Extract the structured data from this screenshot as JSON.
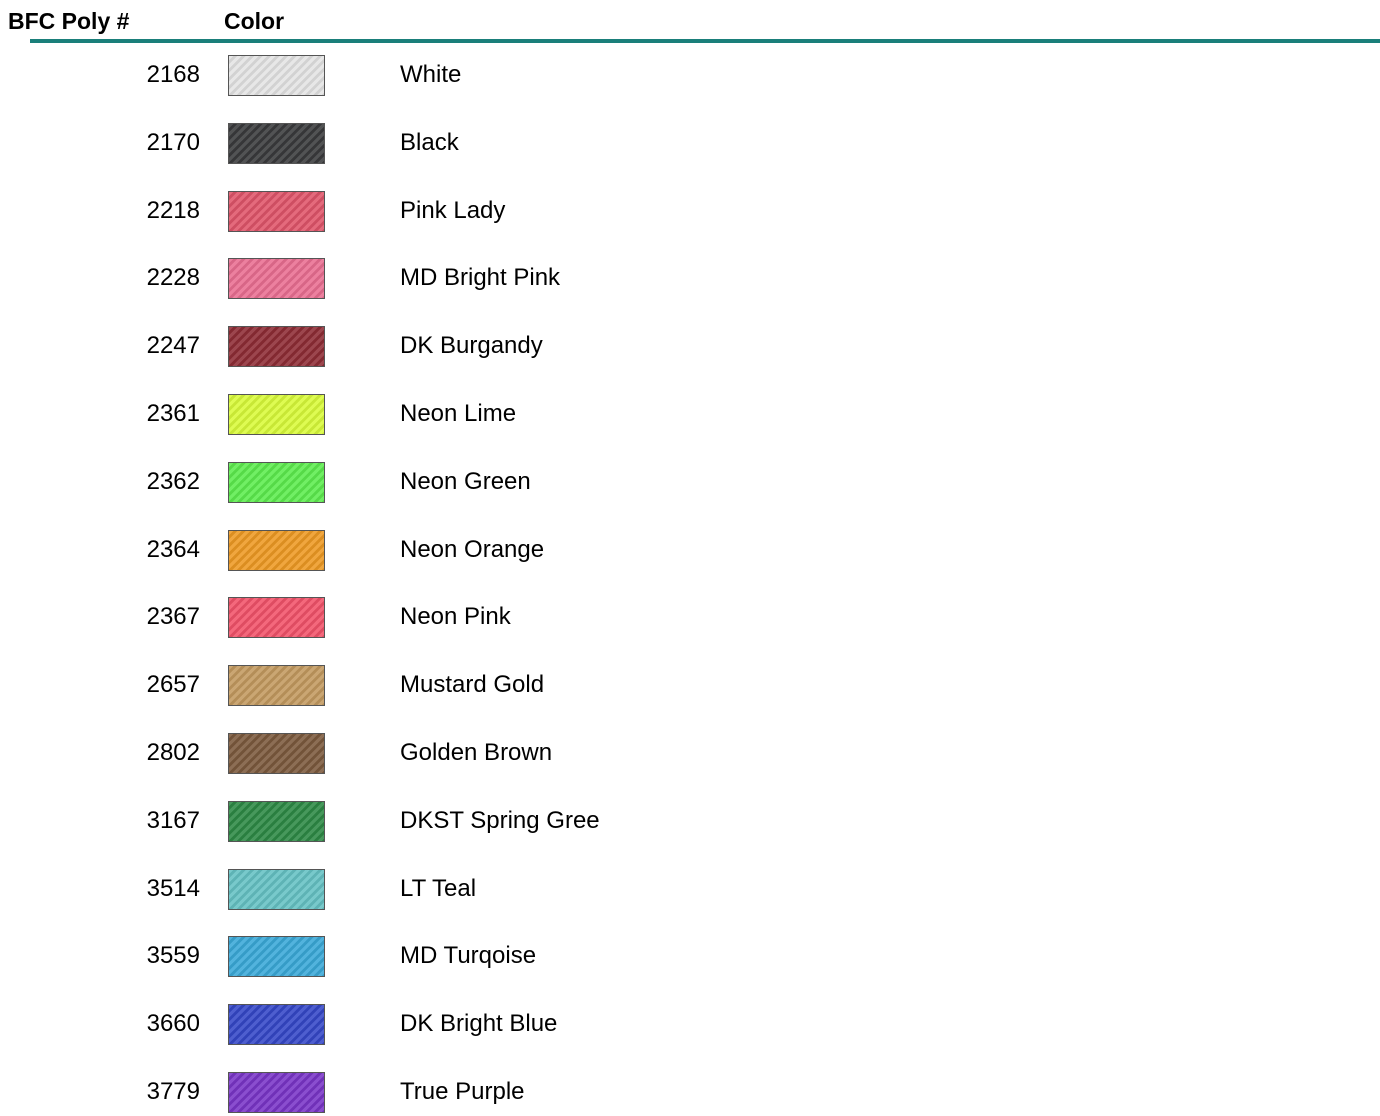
{
  "header": {
    "number": "BFC Poly #",
    "color": "Color"
  },
  "rows": [
    {
      "number": "2168",
      "name": "White",
      "color": "#e4e4e4"
    },
    {
      "number": "2170",
      "name": "Black",
      "color": "#3a3b3d"
    },
    {
      "number": "2218",
      "name": "Pink Lady",
      "color": "#e0556a"
    },
    {
      "number": "2228",
      "name": "MD Bright Pink",
      "color": "#ea6f92"
    },
    {
      "number": "2247",
      "name": "DK Burgandy",
      "color": "#8e2c35"
    },
    {
      "number": "2361",
      "name": "Neon Lime",
      "color": "#d9fb3a"
    },
    {
      "number": "2362",
      "name": "Neon Green",
      "color": "#5ded4e"
    },
    {
      "number": "2364",
      "name": "Neon Orange",
      "color": "#ee9a24"
    },
    {
      "number": "2367",
      "name": "Neon Pink",
      "color": "#f2536a"
    },
    {
      "number": "2657",
      "name": "Mustard Gold",
      "color": "#c39a60"
    },
    {
      "number": "2802",
      "name": "Golden Brown",
      "color": "#7c5a3e"
    },
    {
      "number": "3167",
      "name": "DKST Spring Gree",
      "color": "#2e8a45"
    },
    {
      "number": "3514",
      "name": "LT Teal",
      "color": "#66c2c4"
    },
    {
      "number": "3559",
      "name": "MD Turqoise",
      "color": "#3aa9d8"
    },
    {
      "number": "3660",
      "name": "DK Bright Blue",
      "color": "#3548c8"
    },
    {
      "number": "3779",
      "name": "True Purple",
      "color": "#7a35c8"
    }
  ]
}
